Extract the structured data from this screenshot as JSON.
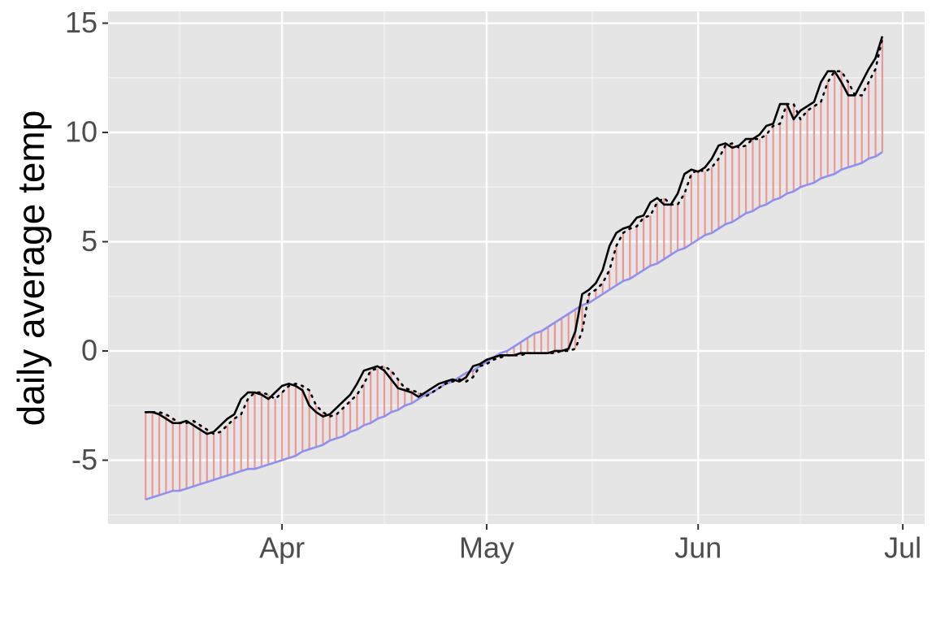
{
  "chart_data": {
    "type": "line",
    "y_label": "daily average temp",
    "x": [
      71,
      72,
      73,
      74,
      75,
      76,
      77,
      78,
      79,
      80,
      81,
      82,
      83,
      84,
      85,
      86,
      87,
      88,
      89,
      90,
      91,
      92,
      93,
      94,
      95,
      96,
      97,
      98,
      99,
      100,
      101,
      102,
      103,
      104,
      105,
      106,
      107,
      108,
      109,
      110,
      111,
      112,
      113,
      114,
      115,
      116,
      117,
      118,
      119,
      120,
      121,
      122,
      123,
      124,
      125,
      126,
      127,
      128,
      129,
      130,
      131,
      132,
      133,
      134,
      135,
      136,
      137,
      138,
      139,
      140,
      141,
      142,
      143,
      144,
      145,
      146,
      147,
      148,
      149,
      150,
      151,
      152,
      153,
      154,
      155,
      156,
      157,
      158,
      159,
      160,
      161,
      162,
      163,
      164,
      165,
      166,
      167,
      168,
      169,
      170,
      171,
      172,
      173,
      174,
      175,
      176,
      177,
      178,
      179
    ],
    "series": [
      {
        "color": "#000000",
        "linetype": "solid",
        "values": [
          -2.8,
          -2.8,
          -2.9,
          -3.1,
          -3.3,
          -3.3,
          -3.2,
          -3.4,
          -3.6,
          -3.8,
          -3.7,
          -3.4,
          -3.1,
          -2.9,
          -2.2,
          -1.9,
          -1.9,
          -2.0,
          -2.2,
          -1.9,
          -1.6,
          -1.5,
          -1.6,
          -1.8,
          -2.5,
          -2.8,
          -3.0,
          -2.9,
          -2.6,
          -2.3,
          -2.0,
          -1.5,
          -0.9,
          -0.8,
          -0.7,
          -0.9,
          -1.3,
          -1.7,
          -1.8,
          -1.9,
          -2.1,
          -1.9,
          -1.7,
          -1.5,
          -1.4,
          -1.3,
          -1.4,
          -1.2,
          -0.7,
          -0.6,
          -0.4,
          -0.3,
          -0.2,
          -0.2,
          -0.2,
          -0.1,
          -0.1,
          -0.1,
          -0.1,
          -0.1,
          0.0,
          0.0,
          0.1,
          0.9,
          2.6,
          2.8,
          3.1,
          3.7,
          4.8,
          5.4,
          5.6,
          5.7,
          6.1,
          6.2,
          6.8,
          7.0,
          6.7,
          6.7,
          7.2,
          8.1,
          8.3,
          8.2,
          8.4,
          8.8,
          9.4,
          9.5,
          9.3,
          9.4,
          9.7,
          9.7,
          9.9,
          10.3,
          10.4,
          11.3,
          11.3,
          10.6,
          11.0,
          11.2,
          11.4,
          12.3,
          12.8,
          12.8,
          12.3,
          11.7,
          11.7,
          12.3,
          12.9,
          13.4,
          14.4
        ]
      },
      {
        "color": "#000000",
        "linetype": "dotted",
        "values": [
          -2.8,
          -2.8,
          -2.8,
          -2.9,
          -3.1,
          -3.3,
          -3.3,
          -3.2,
          -3.4,
          -3.6,
          -3.8,
          -3.7,
          -3.4,
          -3.1,
          -2.9,
          -2.2,
          -1.9,
          -1.9,
          -2.0,
          -2.2,
          -1.9,
          -1.6,
          -1.5,
          -1.6,
          -1.8,
          -2.5,
          -2.8,
          -3.0,
          -2.9,
          -2.6,
          -2.3,
          -2.0,
          -1.5,
          -0.9,
          -0.8,
          -0.7,
          -0.9,
          -1.3,
          -1.7,
          -1.8,
          -1.9,
          -2.1,
          -1.9,
          -1.7,
          -1.5,
          -1.4,
          -1.3,
          -1.4,
          -1.2,
          -0.7,
          -0.6,
          -0.4,
          -0.3,
          -0.2,
          -0.2,
          -0.2,
          -0.1,
          -0.1,
          -0.1,
          -0.1,
          -0.1,
          0.0,
          0.0,
          0.1,
          0.9,
          2.6,
          2.8,
          3.1,
          3.7,
          4.8,
          5.4,
          5.6,
          5.7,
          6.1,
          6.2,
          6.8,
          7.0,
          6.7,
          6.7,
          7.2,
          8.1,
          8.3,
          8.2,
          8.4,
          8.8,
          9.4,
          9.5,
          9.3,
          9.4,
          9.7,
          9.7,
          9.9,
          10.3,
          10.4,
          11.3,
          11.3,
          10.6,
          11.0,
          11.2,
          11.4,
          12.3,
          12.8,
          12.8,
          12.3,
          11.7,
          11.7,
          12.3,
          12.9,
          14.3
        ]
      },
      {
        "color": "#9090ee",
        "linetype": "solid",
        "values": [
          -6.8,
          -6.7,
          -6.6,
          -6.5,
          -6.4,
          -6.4,
          -6.3,
          -6.2,
          -6.1,
          -6.0,
          -5.9,
          -5.8,
          -5.7,
          -5.6,
          -5.5,
          -5.4,
          -5.4,
          -5.3,
          -5.2,
          -5.1,
          -5.0,
          -4.9,
          -4.8,
          -4.6,
          -4.5,
          -4.4,
          -4.3,
          -4.1,
          -4.0,
          -3.9,
          -3.7,
          -3.6,
          -3.4,
          -3.3,
          -3.1,
          -3.0,
          -2.8,
          -2.7,
          -2.5,
          -2.4,
          -2.2,
          -2.0,
          -1.9,
          -1.7,
          -1.5,
          -1.4,
          -1.2,
          -1.0,
          -0.9,
          -0.7,
          -0.5,
          -0.3,
          -0.1,
          0.0,
          0.2,
          0.4,
          0.6,
          0.8,
          0.9,
          1.1,
          1.3,
          1.5,
          1.7,
          1.9,
          2.1,
          2.2,
          2.4,
          2.6,
          2.8,
          3.0,
          3.2,
          3.3,
          3.5,
          3.7,
          3.9,
          4.0,
          4.2,
          4.4,
          4.6,
          4.7,
          4.9,
          5.1,
          5.3,
          5.4,
          5.6,
          5.8,
          5.9,
          6.1,
          6.3,
          6.4,
          6.6,
          6.7,
          6.9,
          7.0,
          7.2,
          7.3,
          7.5,
          7.6,
          7.7,
          7.9,
          8.0,
          8.1,
          8.3,
          8.4,
          8.5,
          8.6,
          8.8,
          8.9,
          9.1
        ]
      }
    ],
    "segments": {
      "from": 2,
      "to": 1,
      "color": "#f08888"
    },
    "xlim": [
      65.5,
      185.2
    ],
    "xticks": [
      {
        "value": 91,
        "label": "Apr"
      },
      {
        "value": 121,
        "label": "May"
      },
      {
        "value": 152,
        "label": "Jun"
      },
      {
        "value": 182,
        "label": "Jul"
      }
    ],
    "xminor": [
      76,
      106,
      136.5,
      167
    ],
    "ylim": [
      -7.92,
      15.54
    ],
    "yticks": [
      15,
      10,
      5,
      0,
      -5
    ],
    "yminor": [
      12.5,
      7.5,
      2.5,
      -2.5,
      -7.5
    ],
    "grid": true
  }
}
